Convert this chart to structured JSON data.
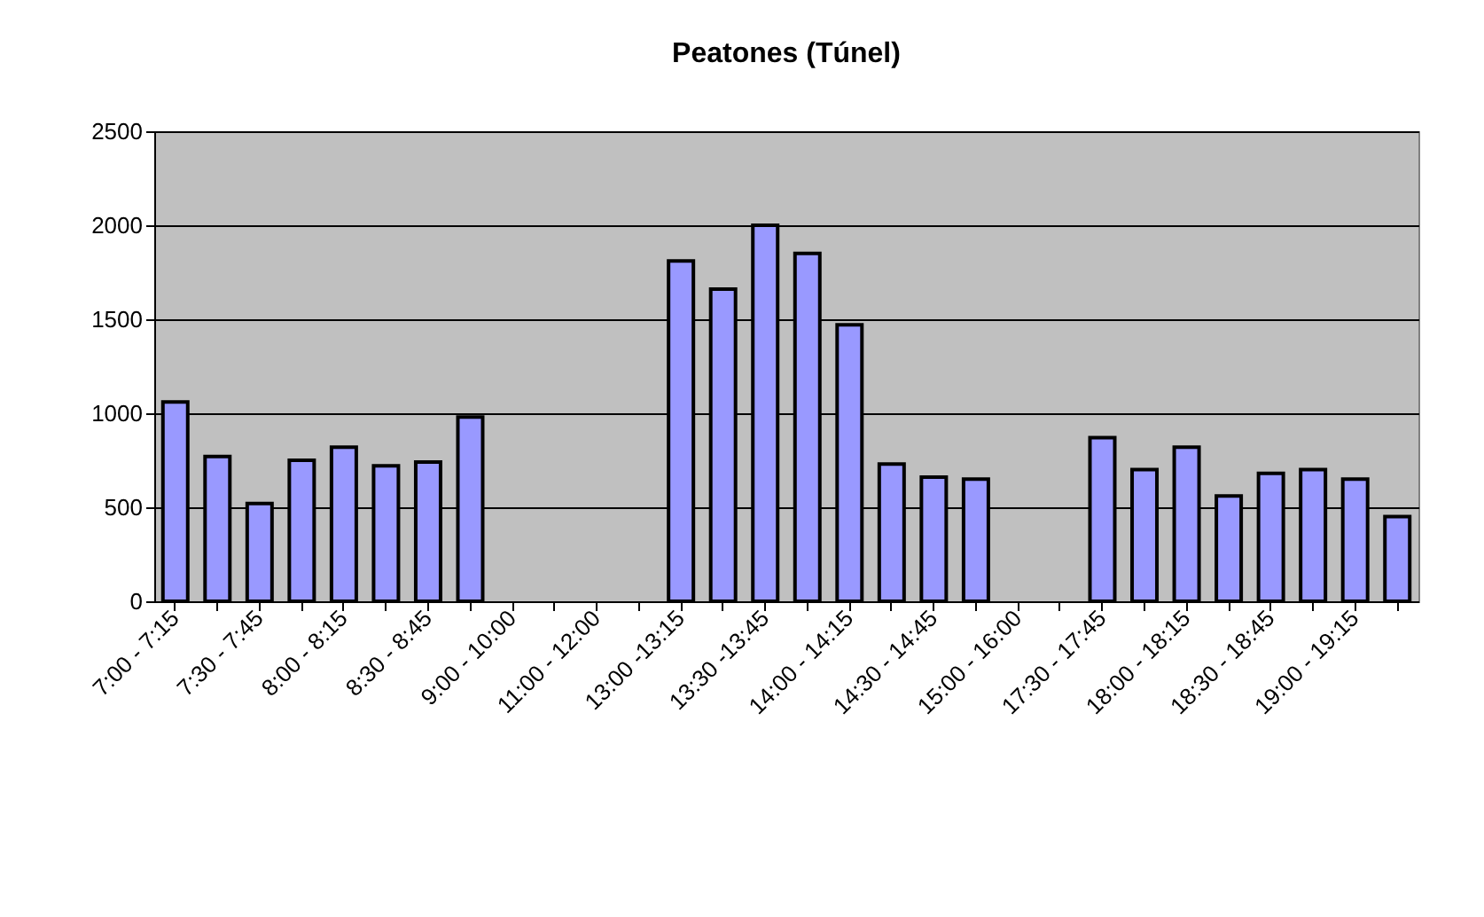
{
  "chart_data": {
    "type": "bar",
    "title": "Peatones (Túnel)",
    "categories": [
      "7:00 - 7:15",
      null,
      "7:30 - 7:45",
      null,
      "8:00 - 8:15",
      null,
      "8:30 - 8:45",
      null,
      "9:00 - 10:00",
      null,
      "11:00 - 12:00",
      null,
      "13:00 -13:15",
      null,
      "13:30 -13:45",
      null,
      "14:00 - 14:15",
      null,
      "14:30 - 14:45",
      null,
      "15:00 - 16:00",
      null,
      "17:30 - 17:45",
      null,
      "18:00 - 18:15",
      null,
      "18:30 - 18:45",
      null,
      "19:00 - 19:15",
      null
    ],
    "values": [
      1060,
      770,
      520,
      750,
      820,
      720,
      740,
      980,
      null,
      null,
      null,
      null,
      1810,
      1660,
      2000,
      1850,
      1470,
      730,
      660,
      650,
      null,
      null,
      870,
      700,
      820,
      560,
      680,
      700,
      650,
      450
    ],
    "color": "#9999ff",
    "ylim": [
      0,
      2500
    ],
    "yticks": [
      0,
      500,
      1000,
      1500,
      2000,
      2500
    ],
    "grid": "y"
  }
}
